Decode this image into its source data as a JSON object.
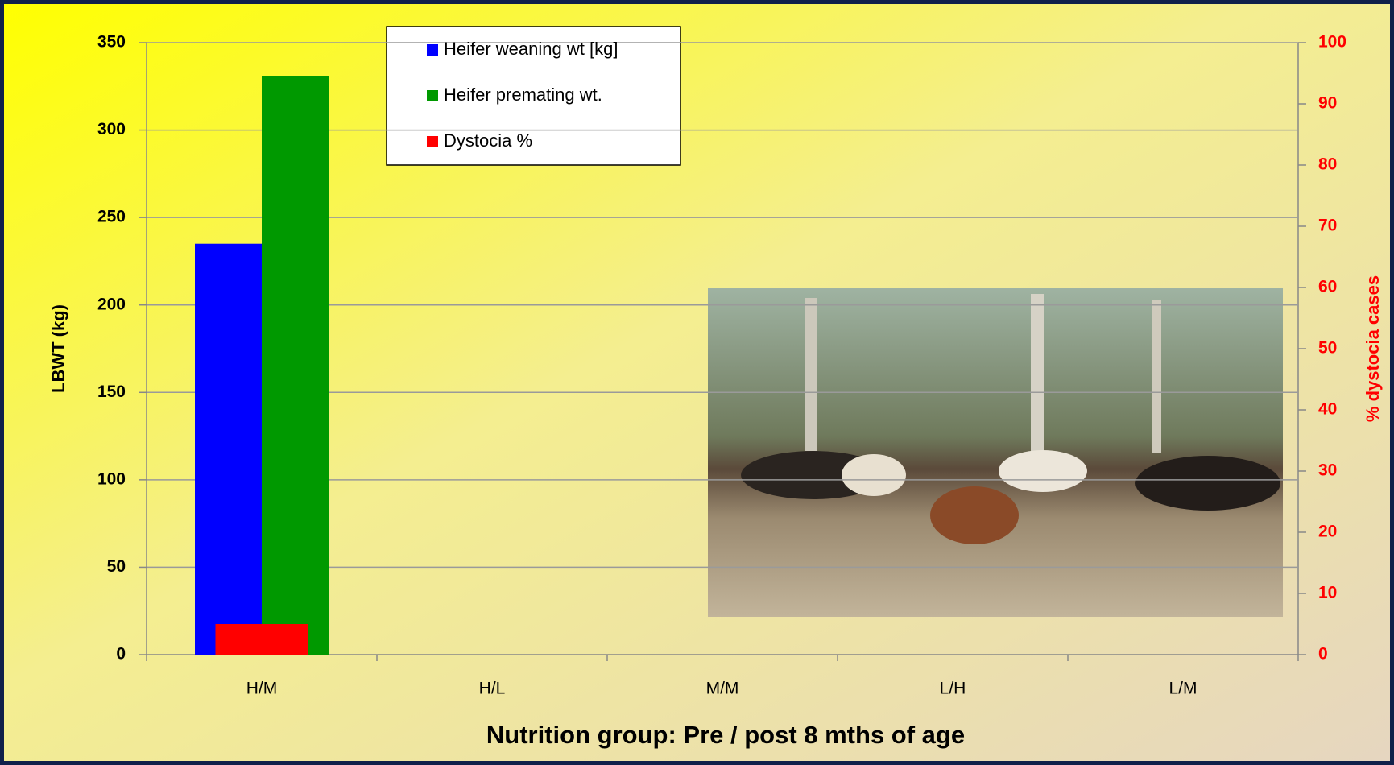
{
  "chart_data": {
    "type": "bar",
    "title": "Nutrition group: Pre / post 8 mths of age",
    "y_label": "LBWT (kg)",
    "y2_label": "% dystocia cases",
    "categories": [
      "H/M",
      "H/L",
      "M/M",
      "L/H",
      "L/M"
    ],
    "series": [
      {
        "name": "Heifer weaning wt [kg]",
        "color": "#0000ff",
        "values": [
          235,
          null,
          null,
          null,
          null
        ]
      },
      {
        "name": "Heifer premating wt.",
        "color": "#009900",
        "values": [
          331,
          null,
          null,
          null,
          null
        ]
      },
      {
        "name": "Dystocia %",
        "color": "#ff0000",
        "axis": "y2",
        "values": [
          5,
          null,
          null,
          null,
          null
        ]
      }
    ],
    "ylim": [
      0,
      350
    ],
    "yticks": [
      0,
      50,
      100,
      150,
      200,
      250,
      300,
      350
    ],
    "y2lim": [
      0,
      100
    ],
    "y2ticks": [
      0,
      10,
      20,
      30,
      40,
      50,
      60,
      70,
      80,
      90,
      100
    ],
    "y2_color": "#ff0000",
    "grid": true,
    "legend": "top"
  }
}
